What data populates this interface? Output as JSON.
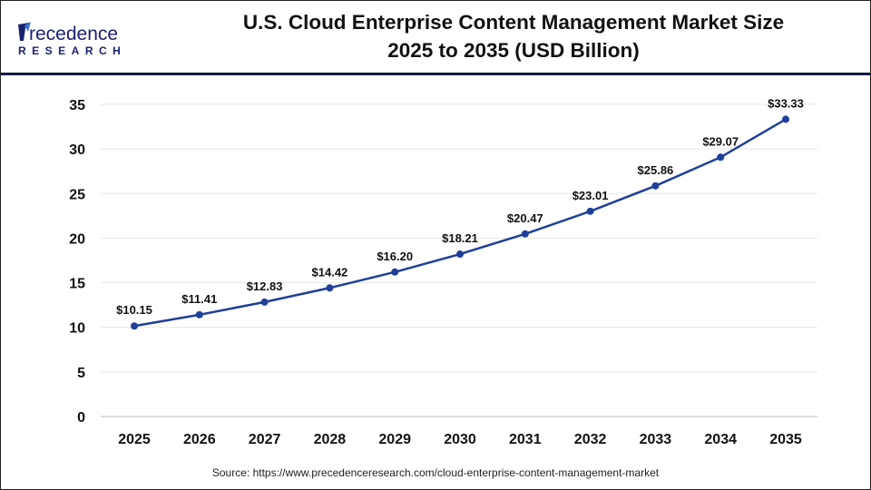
{
  "brand": {
    "logo_text": "Precedence",
    "logo_subtext": "RESEARCH"
  },
  "title_line1": "U.S. Cloud Enterprise Content Management Market Size",
  "title_line2": "2025 to 2035 (USD Billion)",
  "source": "Source: https://www.precedenceresearch.com/cloud-enterprise-content-management-market",
  "chart_data": {
    "type": "line",
    "title": "U.S. Cloud Enterprise Content Management Market Size 2025 to 2035 (USD Billion)",
    "categories": [
      "2025",
      "2026",
      "2027",
      "2028",
      "2029",
      "2030",
      "2031",
      "2032",
      "2033",
      "2034",
      "2035"
    ],
    "values": [
      10.15,
      11.41,
      12.83,
      14.42,
      16.2,
      18.21,
      20.47,
      23.01,
      25.86,
      29.07,
      33.33
    ],
    "data_labels": [
      "$10.15",
      "$11.41",
      "$12.83",
      "$14.42",
      "$16.20",
      "$18.21",
      "$20.47",
      "$23.01",
      "$25.86",
      "$29.07",
      "$33.33"
    ],
    "yticks": [
      0,
      5,
      10,
      15,
      20,
      25,
      30,
      35
    ],
    "ylim": [
      0,
      35
    ],
    "grid": true,
    "line_color": "#1f3f99",
    "xlabel": "",
    "ylabel": ""
  }
}
